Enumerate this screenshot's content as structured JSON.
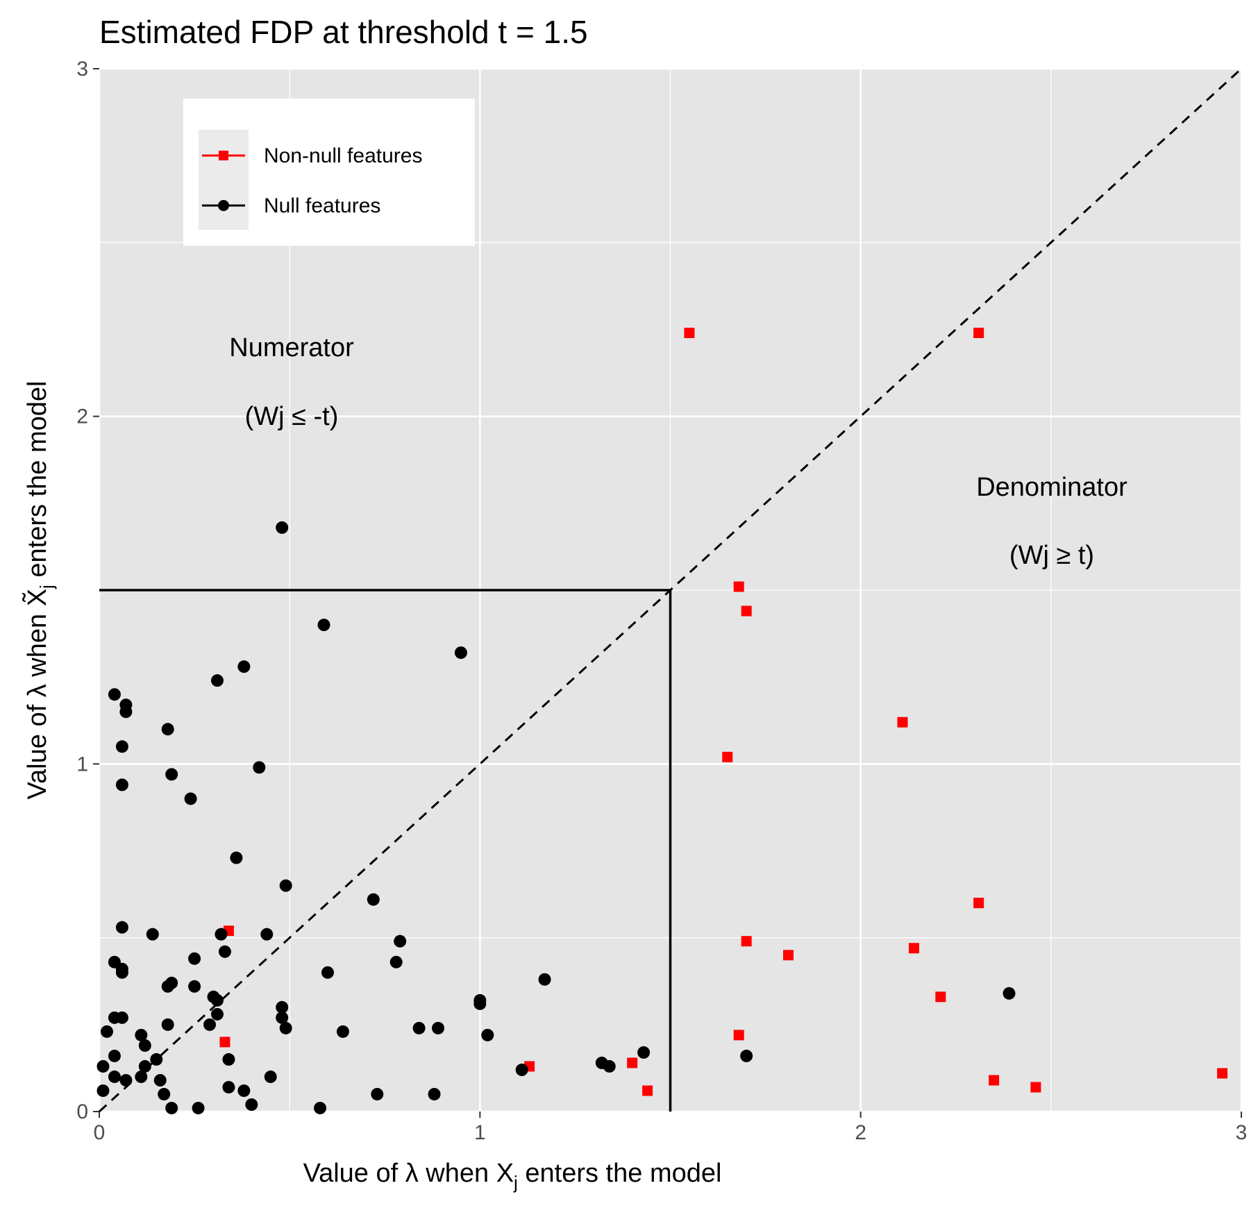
{
  "chart_data": {
    "type": "scatter",
    "title": "Estimated FDP at threshold t = 1.5",
    "xlabel": "Value of λ when Xj enters the model",
    "ylabel": "Value of λ when X̃j enters the model",
    "xlim": [
      0,
      3
    ],
    "ylim": [
      0,
      3
    ],
    "xticks": [
      "0",
      "1",
      "2",
      "3"
    ],
    "yticks": [
      "0",
      "1",
      "2",
      "3"
    ],
    "threshold": 1.5,
    "grid": true,
    "legend_position": "top-left",
    "annotations": {
      "numerator": "Numerator",
      "numerator_cond": "(Wj ≤ -t)",
      "denominator": "Denominator",
      "denominator_cond": "(Wj ≥ t)"
    },
    "series": [
      {
        "name": "Non-null features",
        "color": "#ff0000",
        "marker": "square",
        "points": [
          [
            1.55,
            2.24
          ],
          [
            2.31,
            2.24
          ],
          [
            1.68,
            1.51
          ],
          [
            1.7,
            1.44
          ],
          [
            1.65,
            1.02
          ],
          [
            2.11,
            1.12
          ],
          [
            2.31,
            0.6
          ],
          [
            1.7,
            0.49
          ],
          [
            1.81,
            0.45
          ],
          [
            2.14,
            0.47
          ],
          [
            2.21,
            0.33
          ],
          [
            1.68,
            0.22
          ],
          [
            2.35,
            0.09
          ],
          [
            2.46,
            0.07
          ],
          [
            2.95,
            0.11
          ],
          [
            1.4,
            0.14
          ],
          [
            1.44,
            0.06
          ],
          [
            1.13,
            0.13
          ],
          [
            0.34,
            0.52
          ],
          [
            0.33,
            0.2
          ]
        ]
      },
      {
        "name": "Null features",
        "color": "#000000",
        "marker": "circle",
        "points": [
          [
            0.48,
            1.68
          ],
          [
            0.59,
            1.4
          ],
          [
            0.95,
            1.32
          ],
          [
            0.38,
            1.28
          ],
          [
            0.31,
            1.24
          ],
          [
            0.04,
            1.2
          ],
          [
            0.07,
            1.17
          ],
          [
            0.07,
            1.15
          ],
          [
            0.18,
            1.1
          ],
          [
            0.06,
            1.05
          ],
          [
            0.42,
            0.99
          ],
          [
            0.19,
            0.97
          ],
          [
            0.06,
            0.94
          ],
          [
            0.24,
            0.9
          ],
          [
            0.36,
            0.73
          ],
          [
            0.49,
            0.65
          ],
          [
            0.72,
            0.61
          ],
          [
            0.06,
            0.53
          ],
          [
            0.14,
            0.51
          ],
          [
            0.32,
            0.51
          ],
          [
            0.44,
            0.51
          ],
          [
            0.79,
            0.49
          ],
          [
            0.33,
            0.46
          ],
          [
            0.25,
            0.44
          ],
          [
            0.78,
            0.43
          ],
          [
            0.04,
            0.43
          ],
          [
            0.06,
            0.41
          ],
          [
            0.06,
            0.4
          ],
          [
            0.6,
            0.4
          ],
          [
            1.17,
            0.38
          ],
          [
            0.19,
            0.37
          ],
          [
            0.18,
            0.36
          ],
          [
            0.25,
            0.36
          ],
          [
            0.3,
            0.33
          ],
          [
            0.31,
            0.32
          ],
          [
            1.0,
            0.32
          ],
          [
            1.0,
            0.31
          ],
          [
            0.48,
            0.3
          ],
          [
            2.39,
            0.34
          ],
          [
            0.04,
            0.27
          ],
          [
            0.06,
            0.27
          ],
          [
            0.31,
            0.28
          ],
          [
            0.48,
            0.27
          ],
          [
            0.18,
            0.25
          ],
          [
            0.29,
            0.25
          ],
          [
            0.49,
            0.24
          ],
          [
            0.02,
            0.23
          ],
          [
            0.64,
            0.23
          ],
          [
            0.84,
            0.24
          ],
          [
            0.89,
            0.24
          ],
          [
            0.11,
            0.22
          ],
          [
            1.02,
            0.22
          ],
          [
            0.12,
            0.19
          ],
          [
            0.04,
            0.16
          ],
          [
            1.43,
            0.17
          ],
          [
            1.7,
            0.16
          ],
          [
            0.34,
            0.15
          ],
          [
            0.15,
            0.15
          ],
          [
            0.01,
            0.13
          ],
          [
            1.32,
            0.14
          ],
          [
            1.34,
            0.13
          ],
          [
            1.11,
            0.12
          ],
          [
            0.12,
            0.13
          ],
          [
            0.11,
            0.1
          ],
          [
            0.04,
            0.1
          ],
          [
            0.07,
            0.09
          ],
          [
            0.16,
            0.09
          ],
          [
            0.45,
            0.1
          ],
          [
            0.34,
            0.07
          ],
          [
            0.38,
            0.06
          ],
          [
            0.01,
            0.06
          ],
          [
            0.17,
            0.05
          ],
          [
            0.73,
            0.05
          ],
          [
            0.88,
            0.05
          ],
          [
            0.4,
            0.02
          ],
          [
            0.58,
            0.01
          ],
          [
            0.19,
            0.01
          ],
          [
            0.26,
            0.01
          ]
        ]
      }
    ]
  }
}
